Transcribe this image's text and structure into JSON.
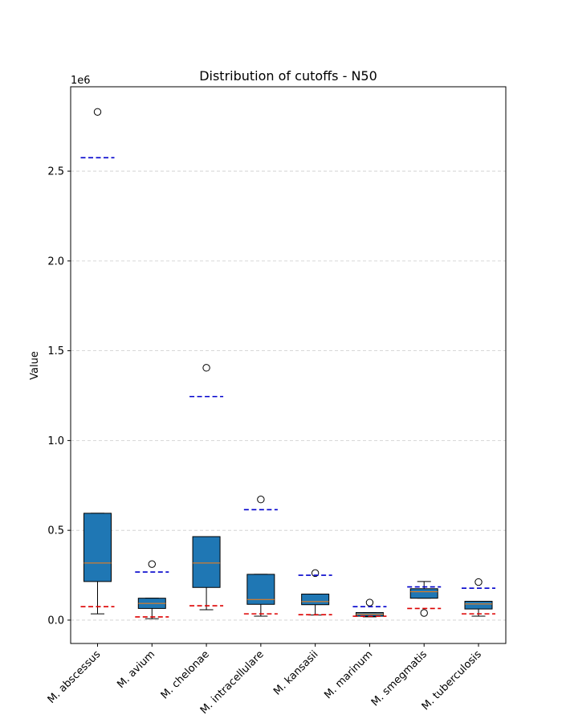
{
  "chart_data": {
    "type": "box",
    "title": "Distribution of cutoffs - N50",
    "xlabel": "",
    "ylabel": "Value",
    "y_offset_label": "1e6",
    "ylim": [
      -130000,
      2970000
    ],
    "yticks": [
      0.0,
      0.5,
      1.0,
      1.5,
      2.0,
      2.5
    ],
    "grid": "y, dashed",
    "box_color": "#1f77b4",
    "median_color": "#ff7f0e",
    "upper_cutoff_color": "#0000cc",
    "lower_cutoff_color": "#dd0000",
    "categories": [
      "M. abscessus",
      "M. avium",
      "M. chelonae",
      "M. intracellulare",
      "M. kansasii",
      "M. marinum",
      "M. smegmatis",
      "M. tuberculosis"
    ],
    "boxes": [
      {
        "whisker_low": 35000,
        "q1": 215000,
        "median": 318000,
        "q3": 595000,
        "whisker_high": 595000,
        "outliers": [
          2830000
        ],
        "upper_cutoff": 2575000,
        "lower_cutoff": 75000
      },
      {
        "whisker_low": 8000,
        "q1": 65000,
        "median": 93000,
        "q3": 122000,
        "whisker_high": 122000,
        "outliers": [
          312000
        ],
        "upper_cutoff": 268000,
        "lower_cutoff": 18000
      },
      {
        "whisker_low": 58000,
        "q1": 182000,
        "median": 318000,
        "q3": 465000,
        "whisker_high": 465000,
        "outliers": [
          1405000
        ],
        "upper_cutoff": 1245000,
        "lower_cutoff": 80000
      },
      {
        "whisker_low": 22000,
        "q1": 88000,
        "median": 115000,
        "q3": 255000,
        "whisker_high": 255000,
        "outliers": [
          672000
        ],
        "upper_cutoff": 615000,
        "lower_cutoff": 35000
      },
      {
        "whisker_low": 28000,
        "q1": 86000,
        "median": 103000,
        "q3": 145000,
        "whisker_high": 145000,
        "outliers": [
          262000
        ],
        "upper_cutoff": 250000,
        "lower_cutoff": 30000
      },
      {
        "whisker_low": 18000,
        "q1": 22000,
        "median": 33000,
        "q3": 42000,
        "whisker_high": 42000,
        "outliers": [
          98000
        ],
        "upper_cutoff": 75000,
        "lower_cutoff": 22000
      },
      {
        "whisker_low": 122000,
        "q1": 122000,
        "median": 158000,
        "q3": 175000,
        "whisker_high": 215000,
        "outliers": [
          40000
        ],
        "upper_cutoff": 185000,
        "lower_cutoff": 65000
      },
      {
        "whisker_low": 22000,
        "q1": 62000,
        "median": 90000,
        "q3": 105000,
        "whisker_high": 105000,
        "outliers": [
          212000
        ],
        "upper_cutoff": 178000,
        "lower_cutoff": 35000
      }
    ]
  }
}
